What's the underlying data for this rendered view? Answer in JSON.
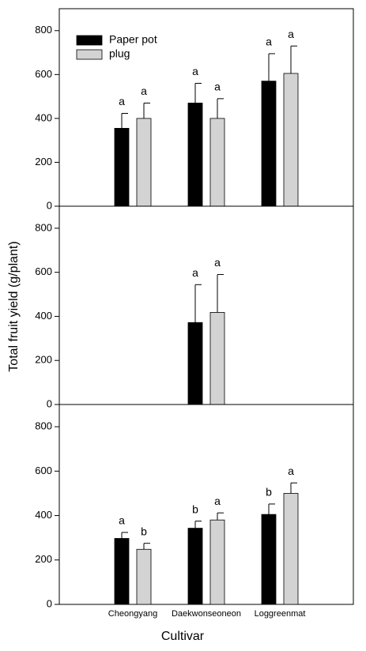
{
  "chart_data": [
    {
      "type": "bar",
      "legend": "upper left",
      "series": [
        {
          "name": "Paper pot",
          "color": "#000000",
          "values": [
            355,
            470,
            570
          ],
          "errors": [
            68,
            90,
            125
          ],
          "letters": [
            "a",
            "a",
            "a"
          ]
        },
        {
          "name": "plug",
          "color": "#d3d3d3",
          "values": [
            400,
            400,
            605
          ],
          "errors": [
            70,
            90,
            125
          ],
          "letters": [
            "a",
            "a",
            "a"
          ]
        }
      ],
      "ylim": [
        0,
        900
      ],
      "yticks": [
        0,
        200,
        400,
        600,
        800
      ]
    },
    {
      "type": "bar",
      "ylabel": "Total fruit yield (g/plant)",
      "series": [
        {
          "color": "#000000",
          "values": [
            null,
            372,
            null
          ],
          "errors": [
            null,
            172,
            null
          ],
          "letters": [
            null,
            "a",
            null
          ]
        },
        {
          "color": "#d3d3d3",
          "values": [
            null,
            418,
            null
          ],
          "errors": [
            null,
            172,
            null
          ],
          "letters": [
            null,
            "a",
            null
          ]
        }
      ],
      "ylim": [
        0,
        900
      ],
      "yticks": [
        0,
        200,
        400,
        600,
        800
      ]
    },
    {
      "type": "bar",
      "xlabel": "Cultivar",
      "categories": [
        "Cheongyang",
        "Daekwonseoneon",
        "Loggreenmat"
      ],
      "series": [
        {
          "color": "#000000",
          "values": [
            297,
            343,
            405
          ],
          "errors": [
            27,
            32,
            47
          ],
          "letters": [
            "a",
            "b",
            "b"
          ]
        },
        {
          "color": "#d3d3d3",
          "values": [
            248,
            380,
            500
          ],
          "errors": [
            27,
            32,
            47
          ],
          "letters": [
            "b",
            "a",
            "a"
          ]
        }
      ],
      "ylim": [
        0,
        900
      ],
      "yticks": [
        0,
        200,
        400,
        600,
        800
      ]
    }
  ]
}
